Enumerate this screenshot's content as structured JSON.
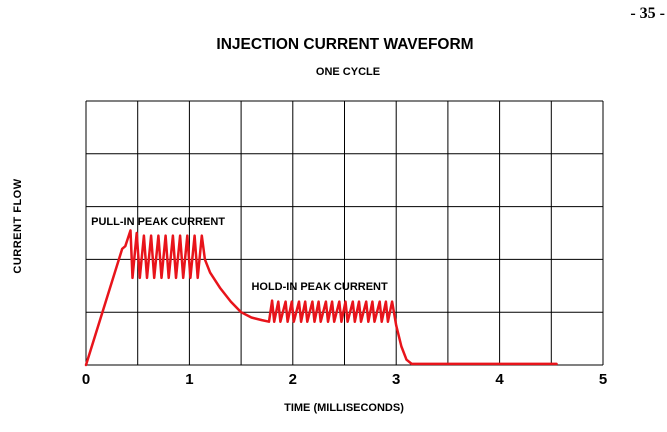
{
  "page": {
    "number": "- 35 -"
  },
  "chart_data": {
    "type": "line",
    "title": "INJECTION CURRENT WAVEFORM",
    "subtitle": "ONE CYCLE",
    "xlabel": "TIME (MILLISECONDS)",
    "ylabel": "CURRENT  FLOW",
    "xlim": [
      0,
      5
    ],
    "ylim": [
      0,
      5
    ],
    "xticks": [
      "0",
      "1",
      "2",
      "3",
      "4",
      "5"
    ],
    "grid": true,
    "line_color": "#e8141b",
    "series": [
      {
        "x": [
          0,
          0.35,
          0.38,
          0.43,
          0.45,
          0.49,
          0.52,
          0.56,
          0.59,
          0.63,
          0.66,
          0.7,
          0.73,
          0.77,
          0.8,
          0.84,
          0.87,
          0.91,
          0.94,
          0.98,
          1.01,
          1.05,
          1.08,
          1.12,
          1.15,
          1.2,
          1.3,
          1.4,
          1.5,
          1.6,
          1.7,
          1.77,
          1.8,
          1.82,
          1.86,
          1.88,
          1.93,
          1.95,
          1.99,
          2.01,
          2.06,
          2.08,
          2.12,
          2.14,
          2.19,
          2.21,
          2.25,
          2.27,
          2.32,
          2.34,
          2.38,
          2.4,
          2.45,
          2.47,
          2.51,
          2.53,
          2.58,
          2.6,
          2.64,
          2.66,
          2.71,
          2.73,
          2.77,
          2.79,
          2.84,
          2.86,
          2.9,
          2.92,
          2.96,
          3.0,
          3.05,
          3.1,
          3.15,
          4.55
        ],
        "y": [
          0,
          2.2,
          2.25,
          2.55,
          1.65,
          2.5,
          1.65,
          2.45,
          1.65,
          2.45,
          1.65,
          2.45,
          1.65,
          2.45,
          1.65,
          2.45,
          1.65,
          2.45,
          1.65,
          2.45,
          1.65,
          2.45,
          1.65,
          2.45,
          2.0,
          1.75,
          1.45,
          1.2,
          1.0,
          0.9,
          0.85,
          0.82,
          1.22,
          0.82,
          1.2,
          0.82,
          1.2,
          0.82,
          1.2,
          0.82,
          1.2,
          0.82,
          1.2,
          0.82,
          1.2,
          0.82,
          1.2,
          0.82,
          1.2,
          0.82,
          1.2,
          0.82,
          1.2,
          0.82,
          1.2,
          0.82,
          1.2,
          0.82,
          1.2,
          0.82,
          1.2,
          0.82,
          1.2,
          0.82,
          1.2,
          0.82,
          1.2,
          0.82,
          1.2,
          0.75,
          0.35,
          0.1,
          0.02,
          0.02
        ]
      }
    ],
    "annotations": [
      {
        "text": "PULL-IN PEAK CURRENT",
        "x": 0.05,
        "y": 2.65
      },
      {
        "text": "HOLD-IN PEAK CURRENT",
        "x": 1.6,
        "y": 1.42
      }
    ]
  }
}
